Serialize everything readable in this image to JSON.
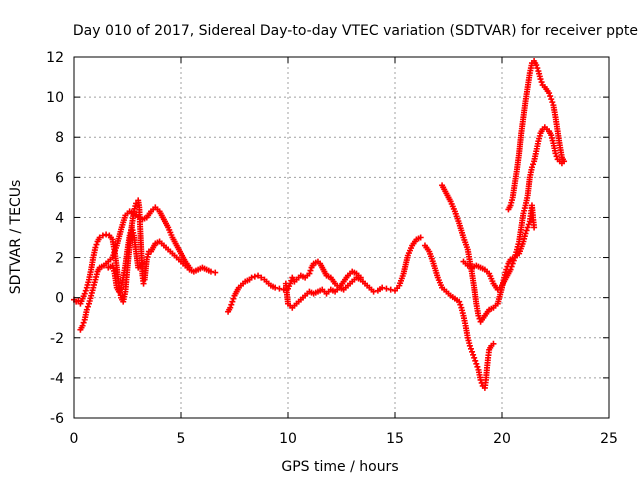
{
  "chart_data": {
    "type": "scatter",
    "title": "Day 010 of 2017, Sidereal Day-to-day VTEC variation (SDTVAR) for receiver ppte",
    "xlabel": "GPS time / hours",
    "ylabel": "SDTVAR / TECUs",
    "xlim": [
      0,
      25
    ],
    "ylim": [
      -6,
      12
    ],
    "xticks": [
      "0",
      "5",
      "10",
      "15",
      "20",
      "25"
    ],
    "yticks": [
      "12",
      "10",
      "8",
      "6",
      "4",
      "2",
      "0",
      "-2",
      "-4",
      "-6"
    ],
    "grid": true,
    "marker": "plus",
    "color": "#ff0000",
    "series": [
      {
        "points": [
          [
            0.0,
            -0.1
          ],
          [
            0.1,
            -0.2
          ],
          [
            0.2,
            -0.15
          ],
          [
            0.3,
            -0.3
          ],
          [
            0.4,
            -0.05
          ],
          [
            0.5,
            0.2
          ],
          [
            0.6,
            0.5
          ],
          [
            0.7,
            0.9
          ],
          [
            0.8,
            1.4
          ],
          [
            0.9,
            2.0
          ],
          [
            1.0,
            2.5
          ],
          [
            1.1,
            2.8
          ],
          [
            1.2,
            3.0
          ],
          [
            1.35,
            3.1
          ],
          [
            1.5,
            3.15
          ],
          [
            1.65,
            3.1
          ],
          [
            1.8,
            2.9
          ],
          [
            1.9,
            2.3
          ],
          [
            2.0,
            1.5
          ],
          [
            2.1,
            0.6
          ],
          [
            2.2,
            0.0
          ],
          [
            2.3,
            -0.2
          ],
          [
            2.4,
            0.3
          ],
          [
            2.5,
            1.5
          ],
          [
            2.6,
            2.6
          ],
          [
            2.7,
            3.6
          ],
          [
            2.8,
            4.3
          ],
          [
            2.9,
            4.7
          ],
          [
            3.0,
            4.85
          ],
          [
            3.05,
            4.5
          ],
          [
            3.1,
            3.3
          ],
          [
            3.15,
            2.2
          ],
          [
            3.2,
            1.1
          ],
          [
            3.25,
            0.7
          ],
          [
            3.3,
            0.9
          ],
          [
            3.4,
            1.9
          ],
          [
            3.5,
            2.3
          ],
          [
            3.6,
            2.3
          ],
          [
            3.8,
            2.7
          ],
          [
            4.0,
            2.8
          ],
          [
            4.2,
            2.6
          ],
          [
            4.4,
            2.4
          ],
          [
            4.6,
            2.2
          ],
          [
            4.8,
            2.0
          ],
          [
            5.0,
            1.8
          ],
          [
            5.2,
            1.6
          ],
          [
            5.4,
            1.4
          ],
          [
            5.6,
            1.3
          ],
          [
            5.8,
            1.4
          ],
          [
            6.0,
            1.5
          ],
          [
            6.2,
            1.4
          ],
          [
            6.4,
            1.3
          ],
          [
            6.6,
            1.25
          ]
        ]
      },
      {
        "points": [
          [
            0.3,
            -1.6
          ],
          [
            0.4,
            -1.4
          ],
          [
            0.5,
            -1.1
          ],
          [
            0.6,
            -0.6
          ],
          [
            0.7,
            -0.3
          ],
          [
            0.8,
            0.1
          ],
          [
            0.9,
            0.5
          ],
          [
            1.0,
            0.9
          ],
          [
            1.1,
            1.3
          ],
          [
            1.2,
            1.5
          ],
          [
            1.4,
            1.6
          ],
          [
            1.6,
            1.8
          ],
          [
            1.8,
            2.0
          ],
          [
            2.0,
            2.6
          ],
          [
            2.2,
            3.4
          ],
          [
            2.4,
            4.1
          ],
          [
            2.6,
            4.3
          ],
          [
            2.8,
            4.2
          ],
          [
            3.0,
            4.05
          ],
          [
            3.2,
            3.9
          ],
          [
            3.4,
            4.0
          ],
          [
            3.6,
            4.3
          ],
          [
            3.8,
            4.5
          ],
          [
            4.0,
            4.3
          ],
          [
            4.2,
            3.9
          ],
          [
            4.4,
            3.5
          ],
          [
            4.6,
            3.0
          ],
          [
            4.8,
            2.6
          ],
          [
            5.0,
            2.2
          ],
          [
            5.2,
            1.8
          ],
          [
            5.4,
            1.5
          ]
        ]
      },
      {
        "points": [
          [
            1.6,
            1.5
          ],
          [
            1.8,
            1.6
          ],
          [
            1.9,
            1.2
          ],
          [
            2.0,
            0.5
          ],
          [
            2.1,
            0.3
          ],
          [
            2.2,
            0.5
          ],
          [
            2.3,
            1.0
          ],
          [
            2.4,
            1.6
          ],
          [
            2.5,
            2.4
          ],
          [
            2.6,
            3.1
          ],
          [
            2.7,
            3.5
          ],
          [
            2.8,
            3.1
          ],
          [
            2.9,
            2.3
          ],
          [
            3.0,
            1.5
          ],
          [
            3.2,
            1.7
          ]
        ]
      },
      {
        "points": [
          [
            7.2,
            -0.7
          ],
          [
            7.3,
            -0.5
          ],
          [
            7.4,
            -0.2
          ],
          [
            7.5,
            0.1
          ],
          [
            7.6,
            0.3
          ],
          [
            7.7,
            0.5
          ],
          [
            7.8,
            0.6
          ],
          [
            7.9,
            0.7
          ],
          [
            8.0,
            0.8
          ],
          [
            8.1,
            0.85
          ],
          [
            8.2,
            0.9
          ],
          [
            8.3,
            1.0
          ],
          [
            8.45,
            1.05
          ],
          [
            8.6,
            1.1
          ],
          [
            8.75,
            1.0
          ],
          [
            8.9,
            0.9
          ],
          [
            9.0,
            0.8
          ],
          [
            9.2,
            0.6
          ],
          [
            9.4,
            0.5
          ],
          [
            9.6,
            0.45
          ],
          [
            9.8,
            0.4
          ],
          [
            10.0,
            0.45
          ],
          [
            10.1,
            0.7
          ],
          [
            10.2,
            1.0
          ],
          [
            10.3,
            0.8
          ],
          [
            10.4,
            0.9
          ],
          [
            10.6,
            1.1
          ],
          [
            10.8,
            1.0
          ],
          [
            11.0,
            1.2
          ],
          [
            11.1,
            1.5
          ],
          [
            11.2,
            1.7
          ],
          [
            11.3,
            1.75
          ],
          [
            11.4,
            1.8
          ],
          [
            11.5,
            1.7
          ],
          [
            11.6,
            1.5
          ],
          [
            11.8,
            1.1
          ],
          [
            12.0,
            1.0
          ],
          [
            12.2,
            0.7
          ],
          [
            12.4,
            0.5
          ],
          [
            12.6,
            0.4
          ],
          [
            12.8,
            0.6
          ],
          [
            13.0,
            0.8
          ],
          [
            13.2,
            1.0
          ],
          [
            13.4,
            0.9
          ],
          [
            13.6,
            0.7
          ],
          [
            13.8,
            0.5
          ],
          [
            14.0,
            0.3
          ],
          [
            14.2,
            0.35
          ],
          [
            14.4,
            0.5
          ],
          [
            14.6,
            0.45
          ],
          [
            14.8,
            0.4
          ],
          [
            15.0,
            0.35
          ],
          [
            15.2,
            0.6
          ],
          [
            15.4,
            1.2
          ],
          [
            15.6,
            2.1
          ],
          [
            15.8,
            2.6
          ],
          [
            16.0,
            2.9
          ],
          [
            16.2,
            3.0
          ]
        ]
      },
      {
        "points": [
          [
            9.9,
            0.7
          ],
          [
            10.0,
            -0.3
          ],
          [
            10.2,
            -0.5
          ],
          [
            10.4,
            -0.3
          ],
          [
            10.6,
            -0.1
          ],
          [
            10.8,
            0.1
          ],
          [
            11.0,
            0.3
          ],
          [
            11.2,
            0.2
          ],
          [
            11.4,
            0.3
          ],
          [
            11.6,
            0.4
          ],
          [
            11.8,
            0.2
          ],
          [
            12.0,
            0.4
          ],
          [
            12.2,
            0.3
          ],
          [
            12.4,
            0.5
          ],
          [
            12.6,
            0.8
          ],
          [
            12.8,
            1.1
          ],
          [
            13.0,
            1.3
          ],
          [
            13.2,
            1.2
          ],
          [
            13.4,
            1.0
          ]
        ]
      },
      {
        "points": [
          [
            16.4,
            2.6
          ],
          [
            16.6,
            2.3
          ],
          [
            16.8,
            1.7
          ],
          [
            17.0,
            1.0
          ],
          [
            17.2,
            0.5
          ],
          [
            17.4,
            0.3
          ],
          [
            17.6,
            0.1
          ],
          [
            17.8,
            -0.05
          ],
          [
            18.0,
            -0.2
          ],
          [
            18.1,
            -0.5
          ],
          [
            18.2,
            -0.9
          ],
          [
            18.3,
            -1.4
          ],
          [
            18.4,
            -2.0
          ],
          [
            18.5,
            -2.4
          ],
          [
            18.6,
            -2.7
          ],
          [
            18.7,
            -3.0
          ],
          [
            18.8,
            -3.3
          ],
          [
            18.9,
            -3.6
          ],
          [
            19.0,
            -4.1
          ],
          [
            19.1,
            -4.4
          ],
          [
            19.2,
            -4.5
          ],
          [
            19.25,
            -4.1
          ],
          [
            19.3,
            -3.5
          ],
          [
            19.35,
            -3.0
          ],
          [
            19.4,
            -2.6
          ],
          [
            19.5,
            -2.4
          ],
          [
            19.6,
            -2.3
          ]
        ]
      },
      {
        "points": [
          [
            17.2,
            5.6
          ],
          [
            17.4,
            5.2
          ],
          [
            17.6,
            4.8
          ],
          [
            17.8,
            4.3
          ],
          [
            18.0,
            3.7
          ],
          [
            18.2,
            3.0
          ],
          [
            18.4,
            2.4
          ],
          [
            18.5,
            1.8
          ],
          [
            18.6,
            1.2
          ],
          [
            18.7,
            0.5
          ],
          [
            18.8,
            -0.3
          ],
          [
            18.9,
            -0.9
          ],
          [
            19.0,
            -1.2
          ],
          [
            19.2,
            -0.9
          ],
          [
            19.4,
            -0.6
          ],
          [
            19.6,
            -0.5
          ],
          [
            19.8,
            -0.3
          ],
          [
            20.0,
            0.5
          ],
          [
            20.1,
            1.0
          ],
          [
            20.2,
            1.4
          ],
          [
            20.3,
            1.7
          ],
          [
            20.4,
            1.9
          ],
          [
            20.6,
            2.0
          ],
          [
            20.8,
            2.2
          ],
          [
            21.0,
            2.8
          ],
          [
            21.1,
            3.2
          ],
          [
            21.2,
            3.5
          ],
          [
            21.3,
            3.8
          ],
          [
            21.35,
            4.2
          ],
          [
            21.4,
            4.6
          ],
          [
            21.45,
            4.0
          ],
          [
            21.5,
            3.5
          ]
        ]
      },
      {
        "points": [
          [
            18.2,
            1.8
          ],
          [
            18.4,
            1.6
          ],
          [
            18.6,
            1.5
          ],
          [
            18.8,
            1.6
          ],
          [
            19.0,
            1.5
          ],
          [
            19.2,
            1.4
          ],
          [
            19.4,
            1.2
          ],
          [
            19.6,
            0.7
          ],
          [
            19.8,
            0.4
          ],
          [
            20.0,
            0.6
          ],
          [
            20.2,
            1.0
          ],
          [
            20.4,
            1.4
          ],
          [
            20.5,
            1.7
          ],
          [
            20.6,
            2.0
          ],
          [
            20.7,
            2.4
          ],
          [
            20.8,
            2.8
          ],
          [
            20.9,
            3.5
          ],
          [
            21.0,
            4.2
          ],
          [
            21.1,
            4.6
          ],
          [
            21.2,
            5.1
          ],
          [
            21.3,
            6.0
          ],
          [
            21.4,
            6.5
          ],
          [
            21.5,
            6.8
          ],
          [
            21.6,
            7.3
          ],
          [
            21.7,
            7.8
          ],
          [
            21.8,
            8.2
          ],
          [
            21.9,
            8.4
          ],
          [
            22.0,
            8.5
          ],
          [
            22.1,
            8.4
          ],
          [
            22.2,
            8.3
          ],
          [
            22.3,
            8.1
          ],
          [
            22.4,
            7.7
          ],
          [
            22.5,
            7.2
          ],
          [
            22.6,
            6.9
          ],
          [
            22.7,
            6.8
          ],
          [
            22.8,
            6.7
          ]
        ]
      },
      {
        "points": [
          [
            20.3,
            4.4
          ],
          [
            20.4,
            4.6
          ],
          [
            20.5,
            5.0
          ],
          [
            20.6,
            5.7
          ],
          [
            20.7,
            6.4
          ],
          [
            20.8,
            7.2
          ],
          [
            20.9,
            8.2
          ],
          [
            21.0,
            9.0
          ],
          [
            21.1,
            9.8
          ],
          [
            21.2,
            10.5
          ],
          [
            21.3,
            11.2
          ],
          [
            21.4,
            11.7
          ],
          [
            21.5,
            11.8
          ],
          [
            21.6,
            11.6
          ],
          [
            21.7,
            11.3
          ],
          [
            21.8,
            10.9
          ],
          [
            21.9,
            10.6
          ],
          [
            22.0,
            10.5
          ],
          [
            22.2,
            10.2
          ],
          [
            22.3,
            9.9
          ],
          [
            22.4,
            9.6
          ],
          [
            22.5,
            9.0
          ],
          [
            22.6,
            8.3
          ],
          [
            22.7,
            7.6
          ],
          [
            22.8,
            7.0
          ],
          [
            22.9,
            6.8
          ]
        ]
      }
    ]
  }
}
